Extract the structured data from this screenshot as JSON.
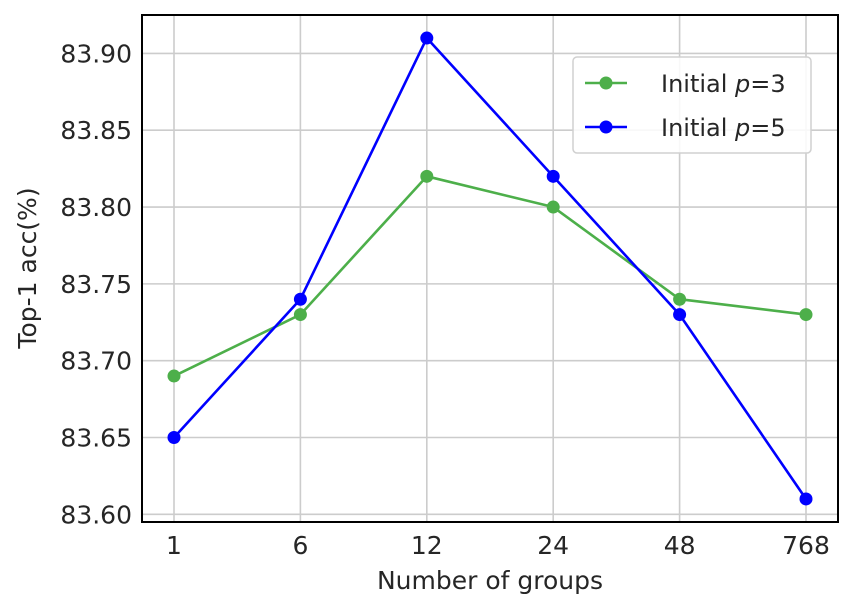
{
  "chart_data": {
    "type": "line",
    "title": "",
    "xlabel": "Number of groups",
    "ylabel": "Top-1 acc(%)",
    "categories": [
      "1",
      "6",
      "12",
      "24",
      "48",
      "768"
    ],
    "yticks": [
      "83.60",
      "83.65",
      "83.70",
      "83.75",
      "83.80",
      "83.85",
      "83.90"
    ],
    "ylim": [
      83.595,
      83.925
    ],
    "grid": true,
    "legend_position": "top-right",
    "series": [
      {
        "name": "Initial ",
        "name_math": "p",
        "name_suffix": "=3",
        "color": "#4daf4a",
        "values": [
          83.69,
          83.73,
          83.82,
          83.8,
          83.74,
          83.73
        ]
      },
      {
        "name": "Initial ",
        "name_math": "p",
        "name_suffix": "=5",
        "color": "#0000ff",
        "values": [
          83.65,
          83.74,
          83.91,
          83.82,
          83.73,
          83.61
        ]
      }
    ]
  }
}
